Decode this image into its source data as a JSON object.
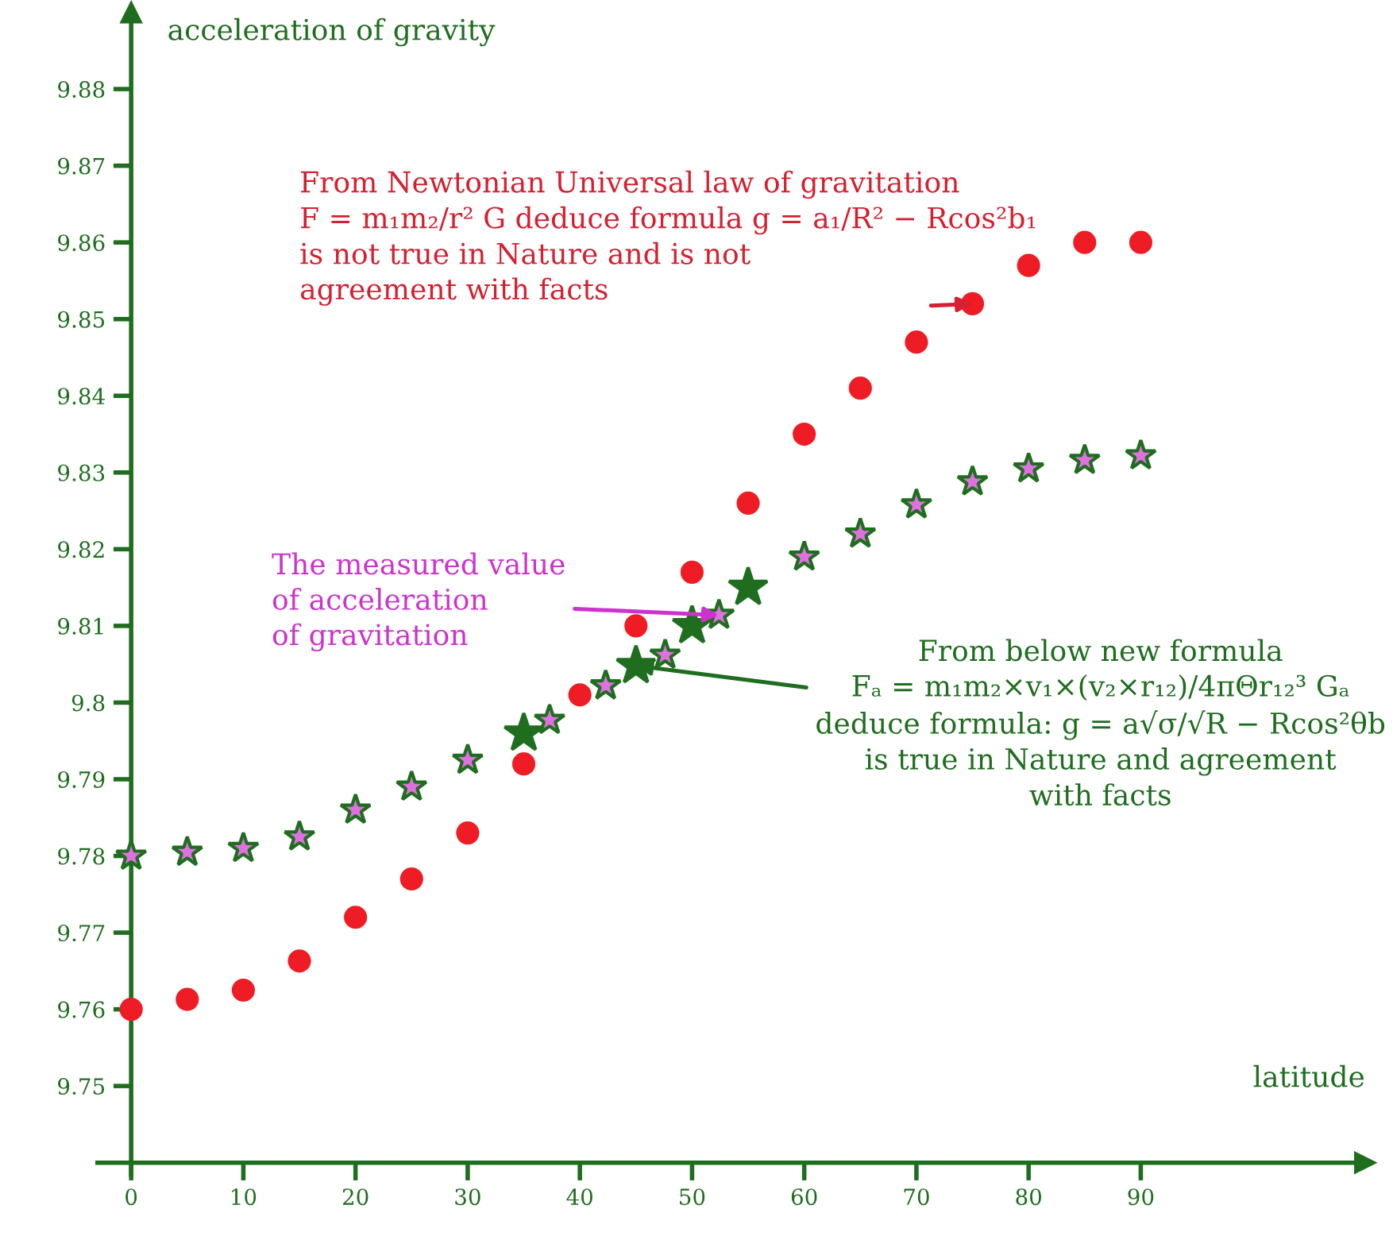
{
  "chart_data": {
    "type": "scatter",
    "xlabel": "latitude",
    "ylabel": "acceleration of gravity",
    "xlim": [
      -3,
      110
    ],
    "ylim": [
      9.7385,
      9.89
    ],
    "xticks": [
      0,
      10,
      20,
      30,
      40,
      50,
      60,
      70,
      80,
      90
    ],
    "yticks": [
      9.75,
      9.76,
      9.77,
      9.78,
      9.79,
      9.8,
      9.81,
      9.82,
      9.83,
      9.84,
      9.85,
      9.86,
      9.87,
      9.88
    ],
    "grid": false,
    "legend": false,
    "series": [
      {
        "color": "#ee1c24",
        "marker": "circle",
        "x": [
          0,
          5,
          10,
          15,
          20,
          25,
          30,
          35,
          40,
          45,
          50,
          55,
          60,
          65,
          70,
          75,
          80,
          85,
          90
        ],
        "values": [
          9.76,
          9.7613,
          9.7625,
          9.7663,
          9.772,
          9.777,
          9.783,
          9.792,
          9.801,
          9.81,
          9.817,
          9.826,
          9.835,
          9.841,
          9.847,
          9.852,
          9.857,
          9.86,
          9.86
        ]
      },
      {
        "color": "#1f6e1f",
        "marker": "star",
        "x": [
          35,
          45,
          50,
          55
        ],
        "values": [
          9.796,
          9.8048,
          9.81,
          9.815
        ]
      },
      {
        "color": "#e070e0",
        "marker": "star",
        "x": [
          0,
          5,
          10,
          15,
          20,
          25,
          30,
          37.3,
          42.3,
          47.6,
          52.4,
          60,
          65,
          70,
          75,
          80,
          85,
          90
        ],
        "values": [
          9.78,
          9.7805,
          9.781,
          9.7825,
          9.786,
          9.789,
          9.7925,
          9.7977,
          9.8022,
          9.8062,
          9.8114,
          9.819,
          9.822,
          9.8258,
          9.8288,
          9.8305,
          9.8316,
          9.8322
        ]
      }
    ],
    "annotations": [
      {
        "text": "From Newtonian Universal law of gravitation\nF = m₁m₂/r² G deduce formula g = a₁/R² − Rcos²b₁\nis not true in Nature and is not\nagreement with facts",
        "x": 75,
        "y": 9.852
      },
      {
        "text": "The measured value\nof acceleration\nof gravitation",
        "x": 52.4,
        "y": 9.8114
      },
      {
        "text": "From below new formula\nFₐ = m₁m₂×v₁×(v₂×r₁₂)/4πΘr₁₂³ Gₐ\ndeduce formula: g = a√σ/√R − Rcos²θb\nis true in Nature and agreement\nwith facts",
        "x": 45,
        "y": 9.8048
      }
    ]
  }
}
